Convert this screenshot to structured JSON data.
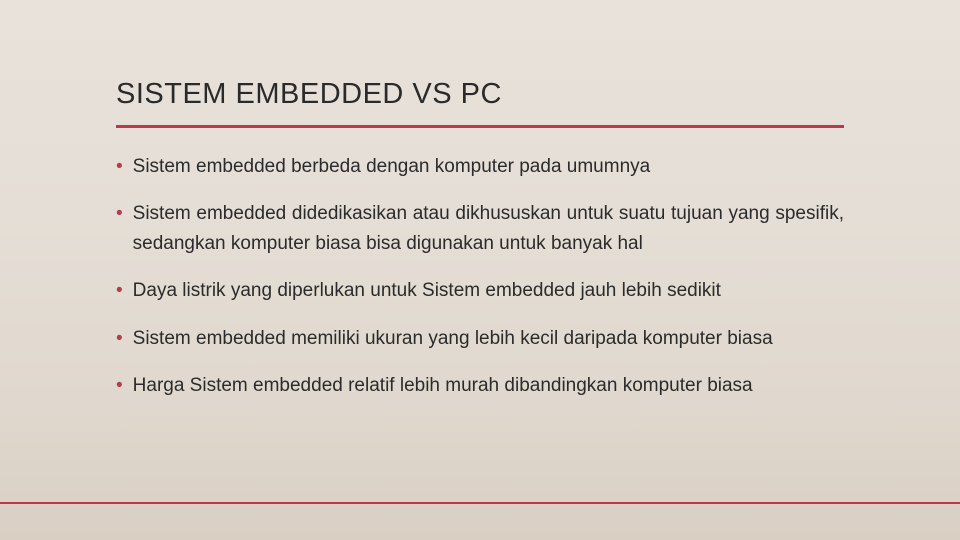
{
  "slide": {
    "title": "SISTEM EMBEDDED VS PC",
    "accent_color": "#b83a4b",
    "background_gradient": [
      "#e8e2da",
      "#e5ded6",
      "#e0d8ce",
      "#d9cfc3"
    ],
    "title_fontsize": 29,
    "body_fontsize": 19,
    "bullets": [
      {
        "text": "Sistem embedded  berbeda  dengan  komputer  pada  umumnya"
      },
      {
        "text": "Sistem embedded  didedikasikan atau dikhususkan  untuk  suatu tujuan  yang  spesifik,  sedangkan  komputer  biasa  bisa digunakan untuk banyak hal"
      },
      {
        "text": "Daya listrik  yang diperlukan untuk Sistem embedded  jauh lebih sedikit"
      },
      {
        "text": "Sistem  embedded  memiliki  ukuran  yang  lebih  kecil  daripada komputer biasa"
      },
      {
        "text": "Harga  Sistem  embedded  relatif  lebih  murah  dibandingkan komputer biasa"
      }
    ],
    "bullet_glyph": "•"
  }
}
